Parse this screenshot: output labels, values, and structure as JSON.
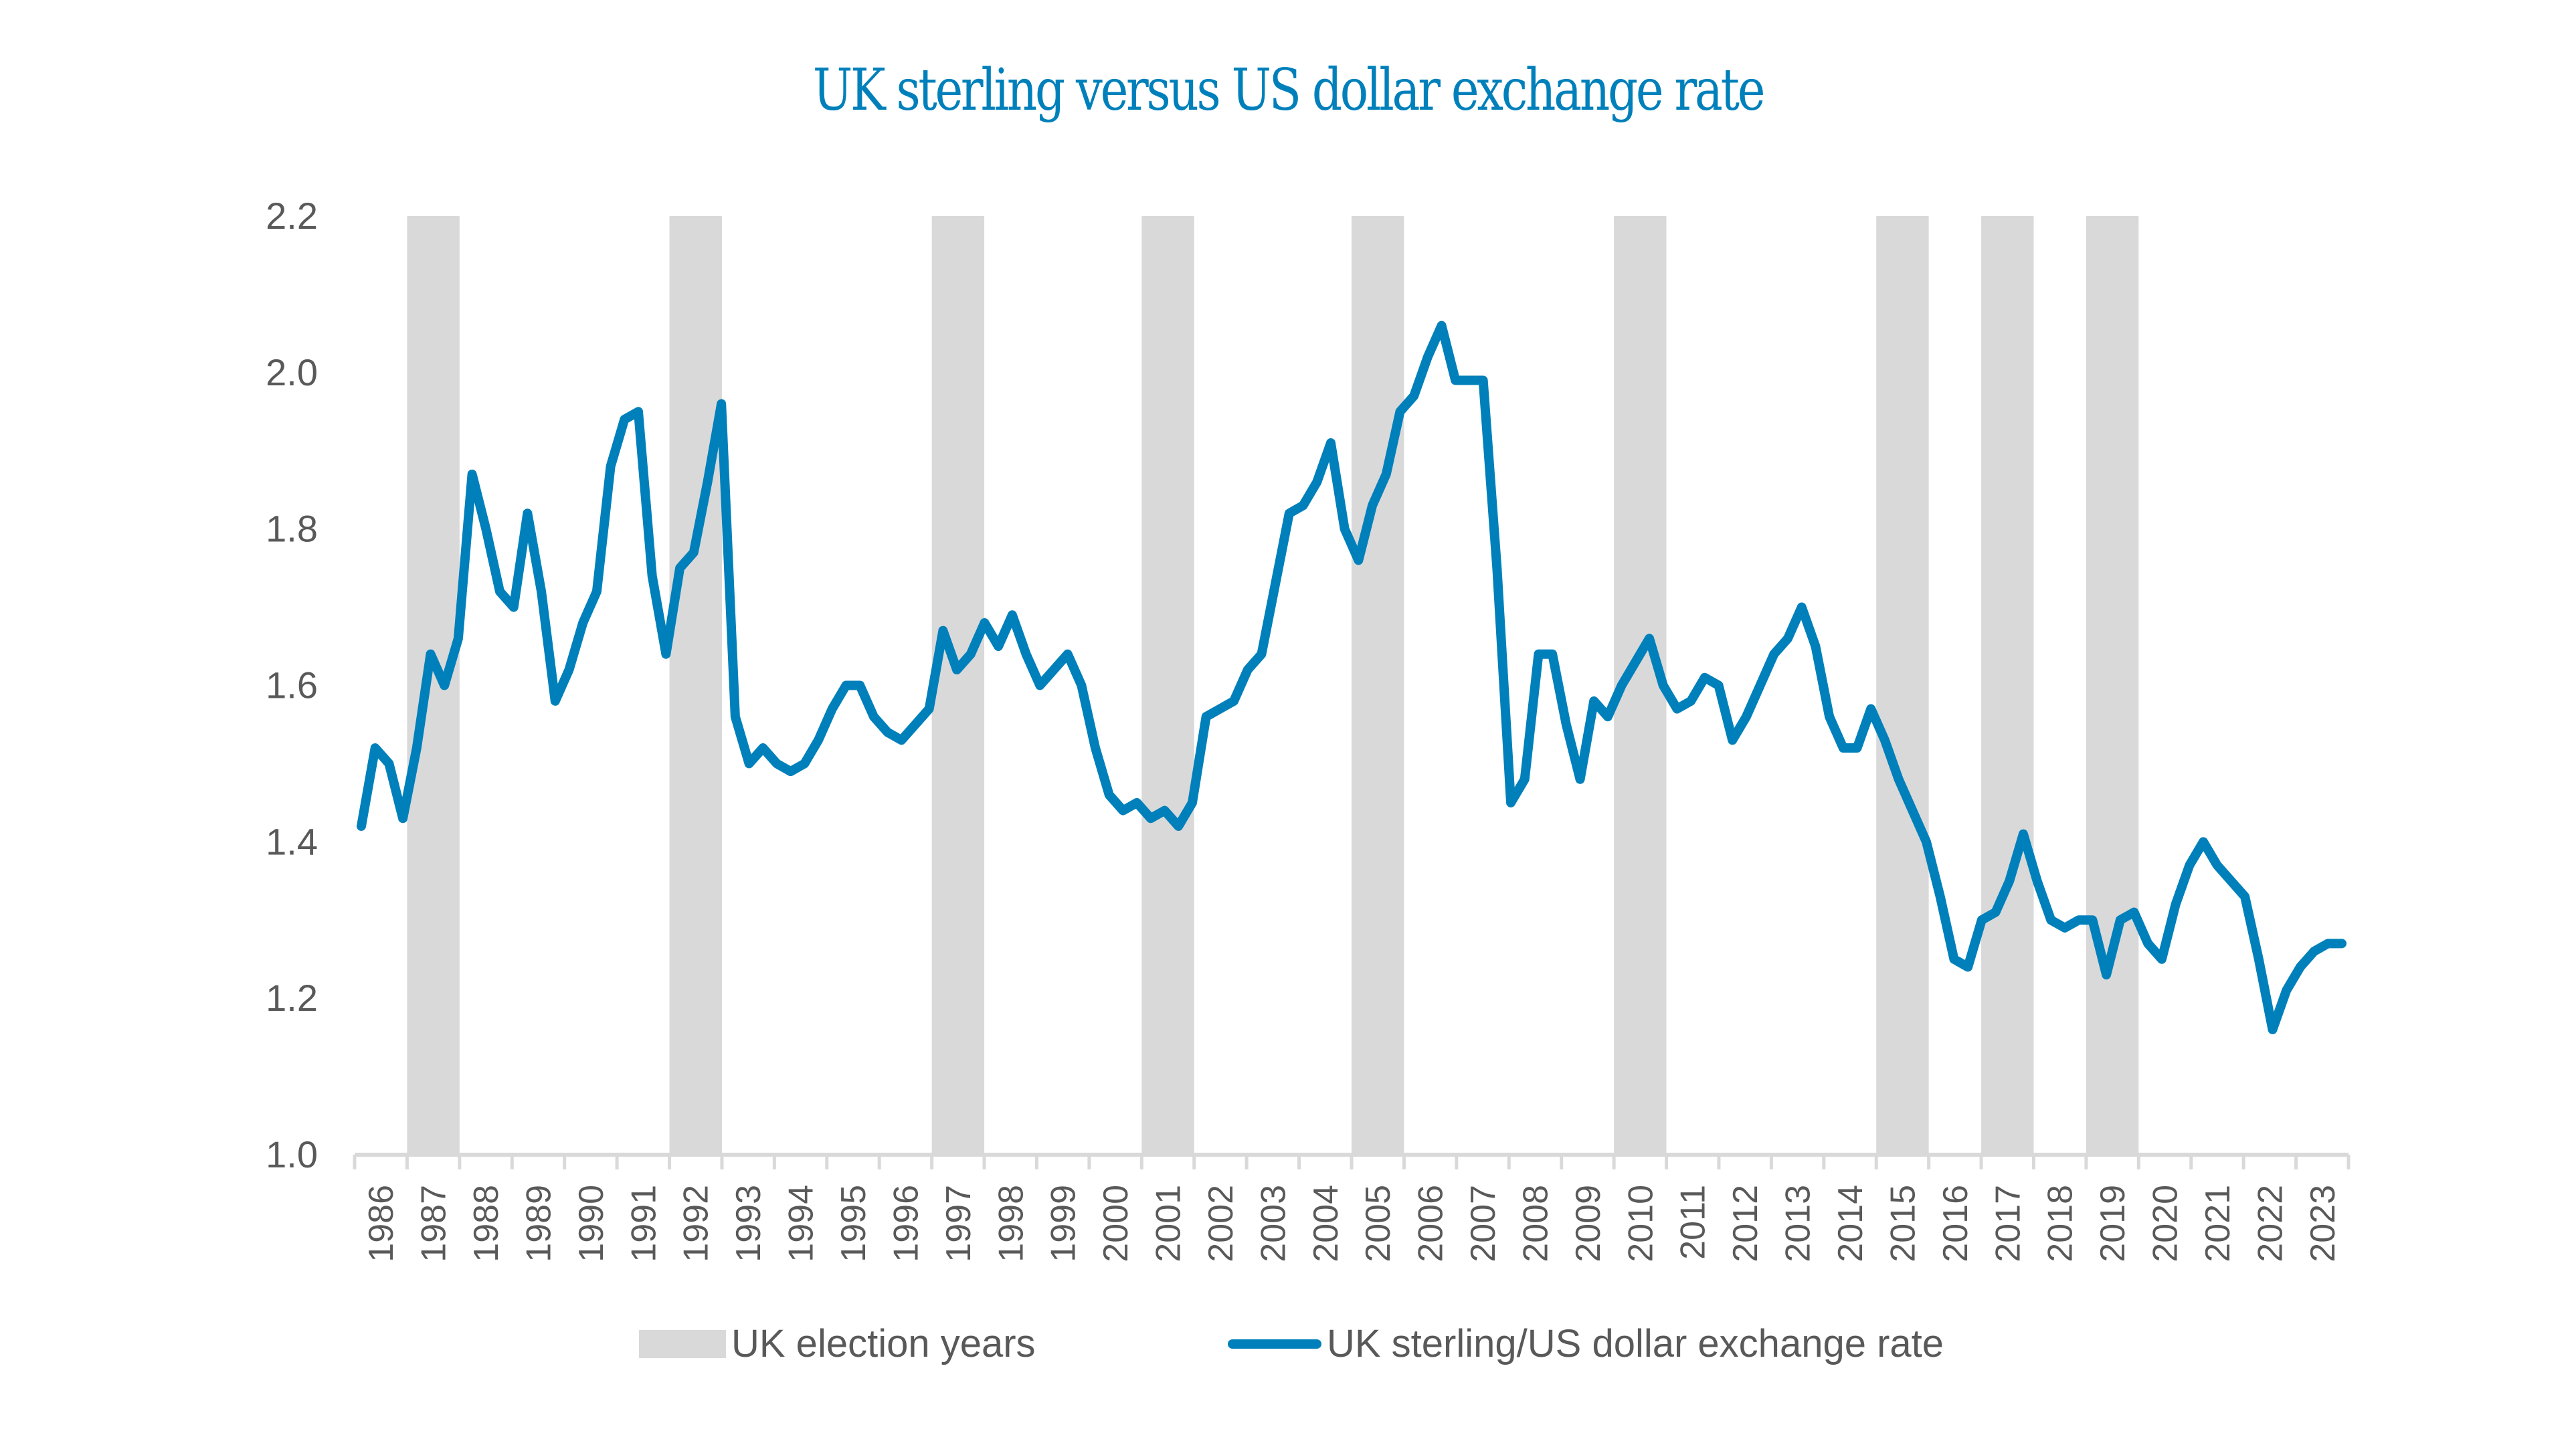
{
  "chart_data": {
    "type": "line",
    "title": "UK sterling versus US dollar exchange rate",
    "xlabel": "",
    "ylabel": "",
    "ylim": [
      1.0,
      2.2
    ],
    "yticks": [
      "1.0",
      "1.2",
      "1.4",
      "1.6",
      "1.8",
      "2.0",
      "2.2"
    ],
    "categories": [
      "1986",
      "1987",
      "1988",
      "1989",
      "1990",
      "1991",
      "1992",
      "1993",
      "1994",
      "1995",
      "1996",
      "1997",
      "1998",
      "1999",
      "2000",
      "2001",
      "2002",
      "2003",
      "2004",
      "2005",
      "2006",
      "2007",
      "2008",
      "2009",
      "2010",
      "2011",
      "2012",
      "2013",
      "2014",
      "2015",
      "2016",
      "2017",
      "2018",
      "2019",
      "2020",
      "2021",
      "2022",
      "2023"
    ],
    "election_years": [
      "1987",
      "1992",
      "1997",
      "2001",
      "2005",
      "2010",
      "2015",
      "2017",
      "2019"
    ],
    "grid": false,
    "legend_position": "bottom",
    "series": [
      {
        "name": "UK sterling/US dollar exchange rate",
        "color": "#0080BB",
        "resolution": "quarterly",
        "values": [
          1.42,
          1.52,
          1.5,
          1.43,
          1.52,
          1.64,
          1.6,
          1.66,
          1.87,
          1.8,
          1.72,
          1.7,
          1.82,
          1.72,
          1.58,
          1.62,
          1.68,
          1.72,
          1.88,
          1.94,
          1.95,
          1.74,
          1.64,
          1.75,
          1.77,
          1.86,
          1.96,
          1.56,
          1.5,
          1.52,
          1.5,
          1.49,
          1.5,
          1.53,
          1.57,
          1.6,
          1.6,
          1.56,
          1.54,
          1.53,
          1.55,
          1.57,
          1.67,
          1.62,
          1.64,
          1.68,
          1.65,
          1.69,
          1.64,
          1.6,
          1.62,
          1.64,
          1.6,
          1.52,
          1.46,
          1.44,
          1.45,
          1.43,
          1.44,
          1.42,
          1.45,
          1.56,
          1.57,
          1.58,
          1.62,
          1.64,
          1.73,
          1.82,
          1.83,
          1.86,
          1.91,
          1.8,
          1.76,
          1.83,
          1.87,
          1.95,
          1.97,
          2.02,
          2.06,
          1.99,
          1.99,
          1.99,
          1.75,
          1.45,
          1.48,
          1.64,
          1.64,
          1.55,
          1.48,
          1.58,
          1.56,
          1.6,
          1.63,
          1.66,
          1.6,
          1.57,
          1.58,
          1.61,
          1.6,
          1.53,
          1.56,
          1.6,
          1.64,
          1.66,
          1.7,
          1.65,
          1.56,
          1.52,
          1.52,
          1.57,
          1.53,
          1.48,
          1.44,
          1.4,
          1.33,
          1.25,
          1.24,
          1.3,
          1.31,
          1.35,
          1.41,
          1.35,
          1.3,
          1.29,
          1.3,
          1.3,
          1.23,
          1.3,
          1.31,
          1.27,
          1.25,
          1.32,
          1.37,
          1.4,
          1.37,
          1.35,
          1.33,
          1.25,
          1.16,
          1.21,
          1.24,
          1.26,
          1.27,
          1.27
        ]
      }
    ]
  },
  "legend": {
    "items": [
      {
        "label": "UK election years",
        "kind": "box",
        "color": "#D9D9D9"
      },
      {
        "label": "UK sterling/US dollar exchange rate",
        "kind": "line",
        "color": "#0080BB"
      }
    ]
  }
}
